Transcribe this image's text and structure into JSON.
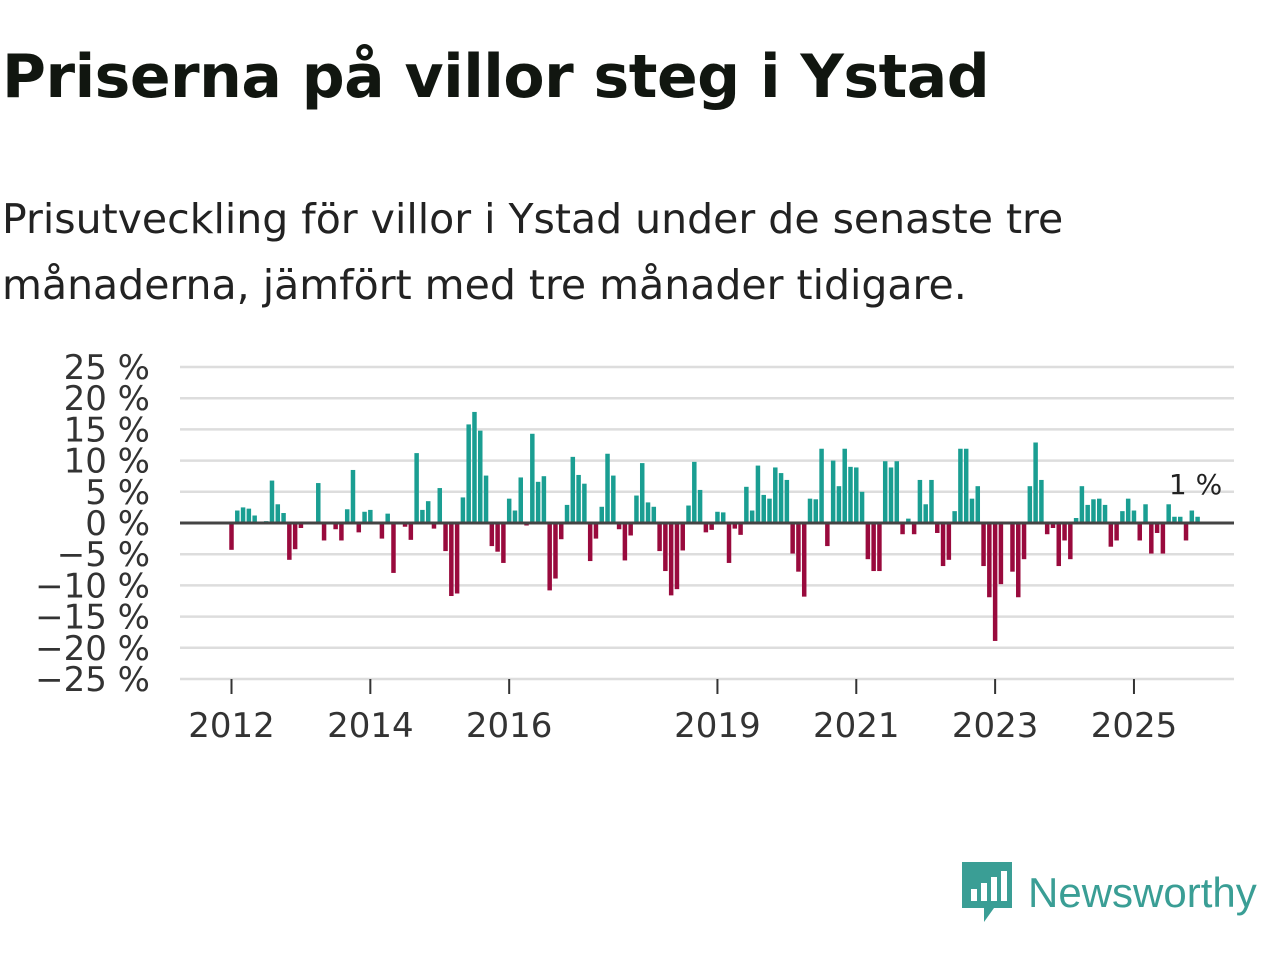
{
  "header": {
    "title": "Priserna på villor steg i Ystad",
    "subtitle": "Prisutveckling för villor i Ystad under de senaste tre månaderna, jämfört med tre månader tidigare."
  },
  "brand": {
    "name": "Newsworthy",
    "icon": "newsworthy-logo-icon",
    "color": "#3a9e95"
  },
  "colors": {
    "positive": "#1a9e92",
    "negative": "#990a3d",
    "grid": "#dddddd",
    "zero": "#444444"
  },
  "chart_data": {
    "type": "bar",
    "title": "Priserna på villor steg i Ystad",
    "ylabel": "",
    "ylim": [
      -25,
      25
    ],
    "y_ticks": [
      25,
      20,
      15,
      10,
      5,
      0,
      -5,
      -10,
      -15,
      -20,
      -25
    ],
    "y_tick_labels": [
      "25 %",
      "20 %",
      "15 %",
      "10 %",
      "5 %",
      "0 %",
      "−5 %",
      "−10 %",
      "−15 %",
      "−20 %",
      "−25 %"
    ],
    "x_ticks": [
      {
        "label": "2012",
        "index": 0
      },
      {
        "label": "2014",
        "index": 24
      },
      {
        "label": "2016",
        "index": 48
      },
      {
        "label": "2019",
        "index": 84
      },
      {
        "label": "2021",
        "index": 108
      },
      {
        "label": "2023",
        "index": 132
      },
      {
        "label": "2025",
        "index": 156
      }
    ],
    "start": "2012-01",
    "end": "2026-01",
    "values": [
      -4.3,
      2.0,
      2.5,
      2.3,
      1.2,
      0,
      0.3,
      6.8,
      3.0,
      1.6,
      -5.9,
      -4.2,
      -0.8,
      0,
      0,
      6.4,
      -2.8,
      0,
      -1.0,
      -2.8,
      2.2,
      8.5,
      -1.5,
      1.8,
      2.1,
      0,
      -2.5,
      1.5,
      -8.0,
      0,
      -0.6,
      -2.7,
      11.2,
      2.1,
      3.5,
      -0.9,
      5.6,
      -4.5,
      -11.7,
      -11.3,
      4.1,
      15.8,
      17.8,
      14.8,
      7.6,
      -3.7,
      -4.6,
      -6.4,
      3.9,
      2.0,
      7.3,
      -0.4,
      14.3,
      6.6,
      7.5,
      -10.8,
      -8.9,
      -2.6,
      2.9,
      10.6,
      7.7,
      6.3,
      -6.1,
      -2.5,
      2.6,
      11.1,
      7.6,
      -1.0,
      -6.0,
      -2.0,
      4.4,
      9.6,
      3.3,
      2.6,
      -4.5,
      -7.7,
      -11.6,
      -10.6,
      -4.4,
      2.8,
      9.8,
      5.3,
      -1.5,
      -1.1,
      1.8,
      1.7,
      -6.4,
      -0.9,
      -1.9,
      5.8,
      2.0,
      9.2,
      4.5,
      3.9,
      8.9,
      8.0,
      6.9,
      -4.9,
      -7.8,
      -11.8,
      3.9,
      3.8,
      11.9,
      -3.7,
      10.0,
      5.9,
      11.9,
      9.0,
      8.9,
      5.0,
      -5.8,
      -7.7,
      -7.7,
      9.9,
      8.9,
      9.9,
      -1.8,
      0.7,
      -1.8,
      6.9,
      3.0,
      6.9,
      -1.6,
      -6.9,
      -5.9,
      1.9,
      11.9,
      11.9,
      3.9,
      5.9,
      -6.9,
      -11.9,
      -18.9,
      -9.8,
      0,
      -7.8,
      -11.9,
      -5.8,
      5.9,
      12.9,
      6.9,
      -1.8,
      -0.8,
      -6.9,
      -2.8,
      -5.8,
      0.8,
      5.9,
      2.9,
      3.8,
      3.9,
      2.9,
      -3.8,
      -2.8,
      1.9,
      3.9,
      2.0,
      -2.8,
      3.0,
      -4.9,
      -1.6,
      -4.9,
      3.0,
      1.0,
      1.0,
      -2.8,
      2.0,
      1.0
    ],
    "last_value_label": "1 %"
  }
}
